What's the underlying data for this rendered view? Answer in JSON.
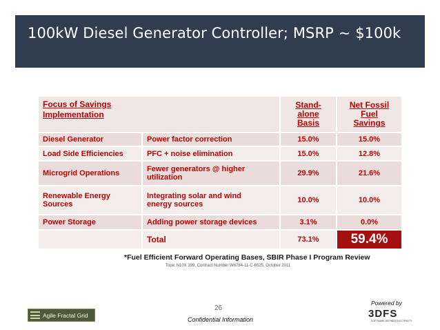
{
  "slide": {
    "title": "100kW Diesel Generator Controller; MSRP ~ $100k"
  },
  "table": {
    "header": {
      "focus_line1": "Focus of Savings",
      "focus_line2": "Implementation",
      "standalone_line1": "Stand-",
      "standalone_line2": "alone",
      "standalone_line3": "Basis",
      "netfossil_line1": "Net Fossil",
      "netfossil_line2": "Fuel",
      "netfossil_line3": "Savings"
    },
    "rows": [
      {
        "focus": "Diesel Generator",
        "impl": "Power factor correction",
        "standalone": "15.0%",
        "net": "15.0%"
      },
      {
        "focus": "Load Side Efficiencies",
        "impl": "PFC + noise elimination",
        "standalone": "15.0%",
        "net": "12.8%"
      },
      {
        "focus": "Microgrid Operations",
        "impl_line1": "Fewer generators @ higher",
        "impl_line2": "utilization",
        "standalone": "29.9%",
        "net": "21.6%"
      },
      {
        "focus_line1": "Renewable Energy",
        "focus_line2": "Sources",
        "impl_line1": "Integrating solar and wind",
        "impl_line2": "energy sources",
        "standalone": "10.0%",
        "net": "10.0%"
      },
      {
        "focus": "Power Storage",
        "impl": "Adding power storage devices",
        "standalone": "3.1%",
        "net": "0.0%"
      }
    ],
    "total": {
      "label": "Total",
      "standalone": "73.1%",
      "net": "59.4%"
    }
  },
  "footnote": {
    "main": "*Fuel Efficient Forward Operating Bases, SBIR Phase I Program Review",
    "sub": "Topic N10X 199, Contract Number:W6784-11-C-6525, October 2011"
  },
  "footer": {
    "page_number": "26",
    "confidential": "Confidential Information",
    "left_logo_text": "Agile Fractal Grid",
    "powered_by": "Powered by",
    "right_logo_text": "3DFS",
    "right_logo_tagline": "SOFTWARE DEFINED ELECTRICITY"
  },
  "colors": {
    "title_bar": "#2f3d4f",
    "table_text": "#c00000",
    "total_highlight": "#a40f0f"
  }
}
